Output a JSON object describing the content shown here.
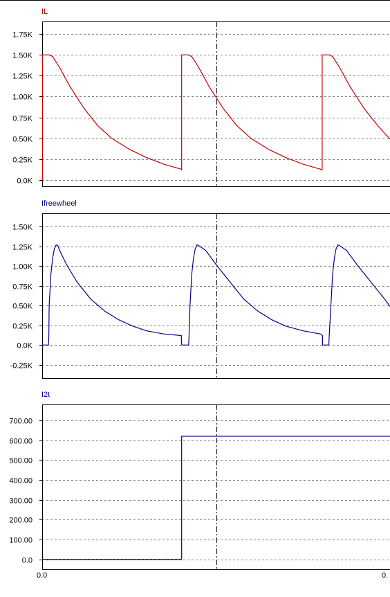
{
  "colors": {
    "il": "#c00000",
    "ifreewheel": "#00008b",
    "i2t": "#00008b",
    "grid": "#808080",
    "frame": "#000000"
  },
  "x_axis": {
    "tick_labels": [
      "0.0",
      "0."
    ],
    "cursor_x": 0.5
  },
  "chart_data": [
    {
      "type": "line",
      "title": "IL",
      "color": "#c00000",
      "ylim": [
        -0.075,
        1.9
      ],
      "yticks": [
        0,
        0.25,
        0.5,
        0.75,
        1.0,
        1.25,
        1.5,
        1.75
      ],
      "ytick_labels": [
        "0.0K",
        "0.25K",
        "0.50K",
        "0.75K",
        "1.00K",
        "1.25K",
        "1.50K",
        "1.75K"
      ],
      "grid": true,
      "series": [
        {
          "x": [
            0.0,
            0.001,
            0.001,
            0.02,
            0.03,
            0.05,
            0.08,
            0.12,
            0.16,
            0.2,
            0.25,
            0.3,
            0.35,
            0.4,
            0.401,
            0.401,
            0.42,
            0.43,
            0.45,
            0.48,
            0.52,
            0.56,
            0.6,
            0.65,
            0.7,
            0.75,
            0.8,
            0.805,
            0.805,
            0.825,
            0.835,
            0.855,
            0.885,
            0.925,
            0.965,
            1.0
          ],
          "y": [
            0.0,
            0.0,
            1.5,
            1.5,
            1.48,
            1.35,
            1.12,
            0.86,
            0.65,
            0.5,
            0.37,
            0.27,
            0.19,
            0.13,
            0.12,
            1.5,
            1.5,
            1.48,
            1.35,
            1.12,
            0.86,
            0.65,
            0.5,
            0.37,
            0.27,
            0.19,
            0.13,
            0.12,
            1.5,
            1.5,
            1.48,
            1.35,
            1.12,
            0.86,
            0.65,
            0.49
          ]
        }
      ]
    },
    {
      "type": "line",
      "title": "Ifreewheel",
      "color": "#00008b",
      "ylim": [
        -0.42,
        1.67
      ],
      "yticks": [
        -0.25,
        0,
        0.25,
        0.5,
        0.75,
        1.0,
        1.25,
        1.5
      ],
      "ytick_labels": [
        "-0.25K",
        "0.0K",
        "0.25K",
        "0.50K",
        "0.75K",
        "1.00K",
        "1.25K",
        "1.50K"
      ],
      "grid": true,
      "series": [
        {
          "x": [
            0.0,
            0.018,
            0.019,
            0.02,
            0.025,
            0.03,
            0.035,
            0.04,
            0.045,
            0.05,
            0.07,
            0.1,
            0.14,
            0.18,
            0.22,
            0.26,
            0.3,
            0.35,
            0.4,
            0.401,
            0.401,
            0.421,
            0.422,
            0.425,
            0.43,
            0.435,
            0.44,
            0.445,
            0.45,
            0.47,
            0.5,
            0.54,
            0.58,
            0.62,
            0.66,
            0.7,
            0.75,
            0.8,
            0.806,
            0.806,
            0.824,
            0.825,
            0.83,
            0.835,
            0.84,
            0.845,
            0.85,
            0.855,
            0.875,
            0.905,
            0.945,
            0.985,
            1.0
          ],
          "y": [
            0.0,
            0.0,
            0.1,
            0.5,
            0.9,
            1.1,
            1.22,
            1.27,
            1.26,
            1.2,
            1.02,
            0.8,
            0.58,
            0.43,
            0.32,
            0.24,
            0.18,
            0.14,
            0.12,
            0.0,
            0.0,
            0.0,
            0.1,
            0.5,
            0.9,
            1.1,
            1.22,
            1.27,
            1.26,
            1.2,
            1.02,
            0.8,
            0.58,
            0.43,
            0.32,
            0.24,
            0.18,
            0.14,
            0.12,
            0.0,
            0.0,
            0.1,
            0.5,
            0.9,
            1.1,
            1.22,
            1.27,
            1.26,
            1.2,
            1.02,
            0.8,
            0.58,
            0.49
          ]
        }
      ]
    },
    {
      "type": "line",
      "title": "I2t",
      "color": "#00008b",
      "ylim": [
        -50,
        780
      ],
      "yticks": [
        0,
        100,
        200,
        300,
        400,
        500,
        600,
        700
      ],
      "ytick_labels": [
        "0.0",
        "100.00",
        "200.00",
        "300.00",
        "400.00",
        "500.00",
        "600.00",
        "700.00"
      ],
      "grid": true,
      "series": [
        {
          "x": [
            0.0,
            0.401,
            0.401,
            1.0
          ],
          "y": [
            0,
            0,
            620,
            620
          ]
        }
      ]
    }
  ]
}
